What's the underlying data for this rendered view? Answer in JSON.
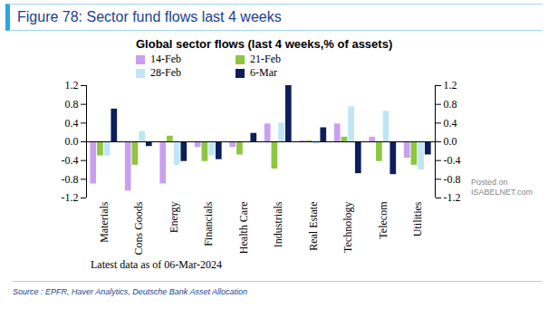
{
  "chart_data": {
    "type": "bar",
    "header": "Figure 78: Sector fund flows last 4 weeks",
    "title": "Global sector flows (last 4 weeks,% of assets)",
    "note": "Latest data as of 06-Mar-2024",
    "source": "Source : EPFR, Haver Analytics, Deutsche Bank Asset Allocation",
    "annotations": [
      "Posted on",
      "ISABELNET.com"
    ],
    "categories": [
      "Materials",
      "Cons Goods",
      "Energy",
      "Financials",
      "Health Care",
      "Industrials",
      "Real Estate",
      "Technology",
      "Telecom",
      "Utilities"
    ],
    "series": [
      {
        "name": "14-Feb",
        "color": "#c9a0ef",
        "values": [
          -0.9,
          -1.05,
          -0.9,
          -0.12,
          -0.12,
          0.38,
          0.02,
          0.38,
          0.1,
          -0.35
        ]
      },
      {
        "name": "21-Feb",
        "color": "#8dc63f",
        "values": [
          -0.3,
          -0.5,
          0.12,
          -0.42,
          -0.28,
          -0.58,
          0.02,
          0.1,
          -0.42,
          -0.5
        ]
      },
      {
        "name": "28-Feb",
        "color": "#bfe6f5",
        "values": [
          -0.3,
          0.22,
          -0.5,
          -0.3,
          0.0,
          0.4,
          -0.05,
          0.75,
          0.65,
          -0.6
        ]
      },
      {
        "name": "6-Mar",
        "color": "#0d1e5b",
        "values": [
          0.7,
          -0.1,
          -0.42,
          -0.38,
          0.18,
          1.2,
          0.3,
          -0.68,
          -0.7,
          -0.28
        ]
      }
    ],
    "ylim": [
      -1.2,
      1.2
    ],
    "yticks": [
      -1.2,
      -0.8,
      -0.4,
      {
        "value": 0,
        "label": "0.0"
      },
      0.4,
      0.8,
      1.2
    ],
    "y2lim": [
      -1.2,
      1.2
    ],
    "y2ticks": [
      -1.2,
      -0.8,
      -0.4,
      {
        "value": 0,
        "label": "0.0"
      },
      0.4,
      0.8,
      1.2
    ],
    "legend": "top",
    "grid": false
  }
}
